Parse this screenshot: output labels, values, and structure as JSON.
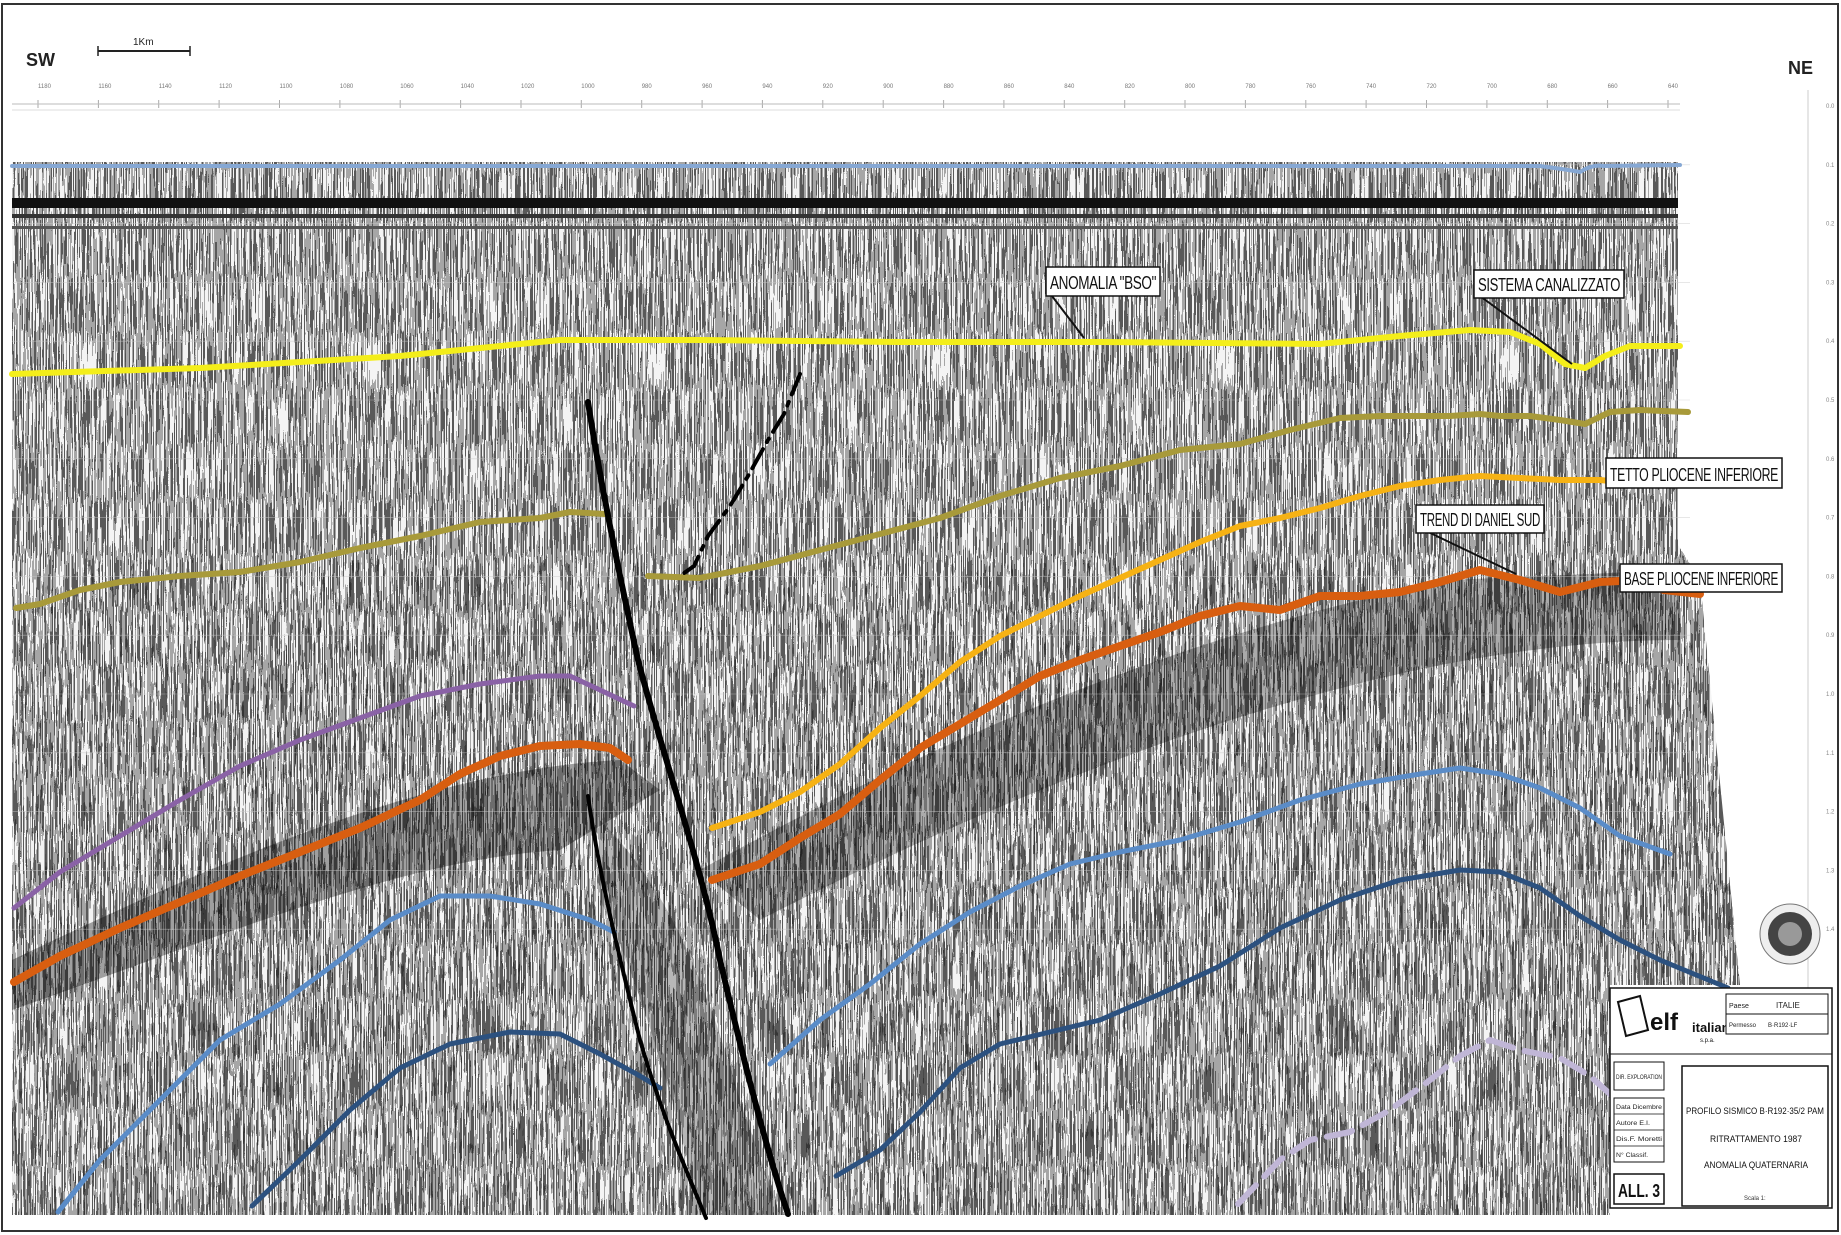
{
  "header": {
    "left_direction": "SW",
    "right_direction": "NE",
    "scale_label": "1Km",
    "shotpoints": [
      "1180",
      "1160",
      "1140",
      "1120",
      "1100",
      "1080",
      "1060",
      "1040",
      "1020",
      "1000",
      "980",
      "960",
      "940",
      "920",
      "900",
      "880",
      "860",
      "840",
      "820",
      "800",
      "780",
      "760",
      "740",
      "720",
      "700",
      "680",
      "660",
      "640"
    ],
    "time_ticks": [
      "0.0",
      "0.1",
      "0.2",
      "0.3",
      "0.4",
      "0.5",
      "0.6",
      "0.7",
      "0.8",
      "0.9",
      "1.0",
      "1.1",
      "1.2",
      "1.3",
      "1.4"
    ]
  },
  "annotations": {
    "anomalia": "ANOMALIA \"BSO\"",
    "sistema": "SISTEMA CANALIZZATO",
    "tetto": "TETTO PLIOCENE INFERIORE",
    "trend": "TREND DI DANIEL SUD",
    "base": "BASE PLIOCENE INFERIORE"
  },
  "colors": {
    "seabed": "#86a8d4",
    "yellow": "#f4ee1a",
    "olive": "#a89a3a",
    "orange_yellow": "#f6b214",
    "orange": "#d85e10",
    "purple": "#8a62a6",
    "light_blue": "#5a8cc8",
    "dark_blue": "#2c517f",
    "lavender": "#c0b6d6",
    "fault": "#000000"
  },
  "title_block": {
    "company": "elf",
    "company_sub": "italiana",
    "company_suffix": "s.p.a.",
    "paese_label": "Paese",
    "paese_value": "ITALIE",
    "permesso_label": "Permesso",
    "permesso_value": "B·R192·LF",
    "dir_exploration": "DIR. EXPLORATION",
    "data": "Data Dicembre",
    "autore": "Autore E.I.",
    "disegno": "Dis.F. Moretti",
    "n_classif": "N° Classif.",
    "line1": "PROFILO SISMICO B·R192·35/2 PAM",
    "line2": "RITRATTAMENTO 1987",
    "line3": "ANOMALIA QUATERNARIA",
    "allegato": "ALL. 3",
    "scala": "Scala 1:"
  }
}
